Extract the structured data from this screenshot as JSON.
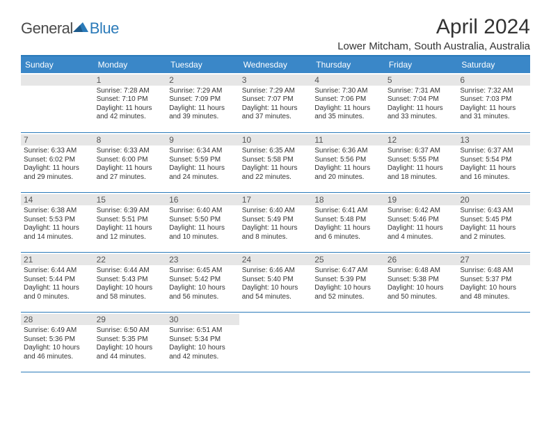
{
  "brand": {
    "general": "General",
    "blue": "Blue",
    "accent_color": "#2a7ab9"
  },
  "title": "April 2024",
  "location": "Lower Mitcham, South Australia, Australia",
  "weekdays": [
    "Sunday",
    "Monday",
    "Tuesday",
    "Wednesday",
    "Thursday",
    "Friday",
    "Saturday"
  ],
  "colors": {
    "header_bg": "#3a87c8",
    "band_bg": "#e6e6e6",
    "divider": "#2a7ab9",
    "text": "#333333"
  },
  "weeks": [
    [
      {
        "empty": true
      },
      {
        "n": "1",
        "sr": "7:28 AM",
        "ss": "7:10 PM",
        "dl": "11 hours and 42 minutes."
      },
      {
        "n": "2",
        "sr": "7:29 AM",
        "ss": "7:09 PM",
        "dl": "11 hours and 39 minutes."
      },
      {
        "n": "3",
        "sr": "7:29 AM",
        "ss": "7:07 PM",
        "dl": "11 hours and 37 minutes."
      },
      {
        "n": "4",
        "sr": "7:30 AM",
        "ss": "7:06 PM",
        "dl": "11 hours and 35 minutes."
      },
      {
        "n": "5",
        "sr": "7:31 AM",
        "ss": "7:04 PM",
        "dl": "11 hours and 33 minutes."
      },
      {
        "n": "6",
        "sr": "7:32 AM",
        "ss": "7:03 PM",
        "dl": "11 hours and 31 minutes."
      }
    ],
    [
      {
        "n": "7",
        "sr": "6:33 AM",
        "ss": "6:02 PM",
        "dl": "11 hours and 29 minutes."
      },
      {
        "n": "8",
        "sr": "6:33 AM",
        "ss": "6:00 PM",
        "dl": "11 hours and 27 minutes."
      },
      {
        "n": "9",
        "sr": "6:34 AM",
        "ss": "5:59 PM",
        "dl": "11 hours and 24 minutes."
      },
      {
        "n": "10",
        "sr": "6:35 AM",
        "ss": "5:58 PM",
        "dl": "11 hours and 22 minutes."
      },
      {
        "n": "11",
        "sr": "6:36 AM",
        "ss": "5:56 PM",
        "dl": "11 hours and 20 minutes."
      },
      {
        "n": "12",
        "sr": "6:37 AM",
        "ss": "5:55 PM",
        "dl": "11 hours and 18 minutes."
      },
      {
        "n": "13",
        "sr": "6:37 AM",
        "ss": "5:54 PM",
        "dl": "11 hours and 16 minutes."
      }
    ],
    [
      {
        "n": "14",
        "sr": "6:38 AM",
        "ss": "5:53 PM",
        "dl": "11 hours and 14 minutes."
      },
      {
        "n": "15",
        "sr": "6:39 AM",
        "ss": "5:51 PM",
        "dl": "11 hours and 12 minutes."
      },
      {
        "n": "16",
        "sr": "6:40 AM",
        "ss": "5:50 PM",
        "dl": "11 hours and 10 minutes."
      },
      {
        "n": "17",
        "sr": "6:40 AM",
        "ss": "5:49 PM",
        "dl": "11 hours and 8 minutes."
      },
      {
        "n": "18",
        "sr": "6:41 AM",
        "ss": "5:48 PM",
        "dl": "11 hours and 6 minutes."
      },
      {
        "n": "19",
        "sr": "6:42 AM",
        "ss": "5:46 PM",
        "dl": "11 hours and 4 minutes."
      },
      {
        "n": "20",
        "sr": "6:43 AM",
        "ss": "5:45 PM",
        "dl": "11 hours and 2 minutes."
      }
    ],
    [
      {
        "n": "21",
        "sr": "6:44 AM",
        "ss": "5:44 PM",
        "dl": "11 hours and 0 minutes."
      },
      {
        "n": "22",
        "sr": "6:44 AM",
        "ss": "5:43 PM",
        "dl": "10 hours and 58 minutes."
      },
      {
        "n": "23",
        "sr": "6:45 AM",
        "ss": "5:42 PM",
        "dl": "10 hours and 56 minutes."
      },
      {
        "n": "24",
        "sr": "6:46 AM",
        "ss": "5:40 PM",
        "dl": "10 hours and 54 minutes."
      },
      {
        "n": "25",
        "sr": "6:47 AM",
        "ss": "5:39 PM",
        "dl": "10 hours and 52 minutes."
      },
      {
        "n": "26",
        "sr": "6:48 AM",
        "ss": "5:38 PM",
        "dl": "10 hours and 50 minutes."
      },
      {
        "n": "27",
        "sr": "6:48 AM",
        "ss": "5:37 PM",
        "dl": "10 hours and 48 minutes."
      }
    ],
    [
      {
        "n": "28",
        "sr": "6:49 AM",
        "ss": "5:36 PM",
        "dl": "10 hours and 46 minutes."
      },
      {
        "n": "29",
        "sr": "6:50 AM",
        "ss": "5:35 PM",
        "dl": "10 hours and 44 minutes."
      },
      {
        "n": "30",
        "sr": "6:51 AM",
        "ss": "5:34 PM",
        "dl": "10 hours and 42 minutes."
      },
      {
        "blank": true
      },
      {
        "blank": true
      },
      {
        "blank": true
      },
      {
        "blank": true
      }
    ]
  ],
  "labels": {
    "sunrise": "Sunrise:",
    "sunset": "Sunset:",
    "daylight": "Daylight:"
  }
}
